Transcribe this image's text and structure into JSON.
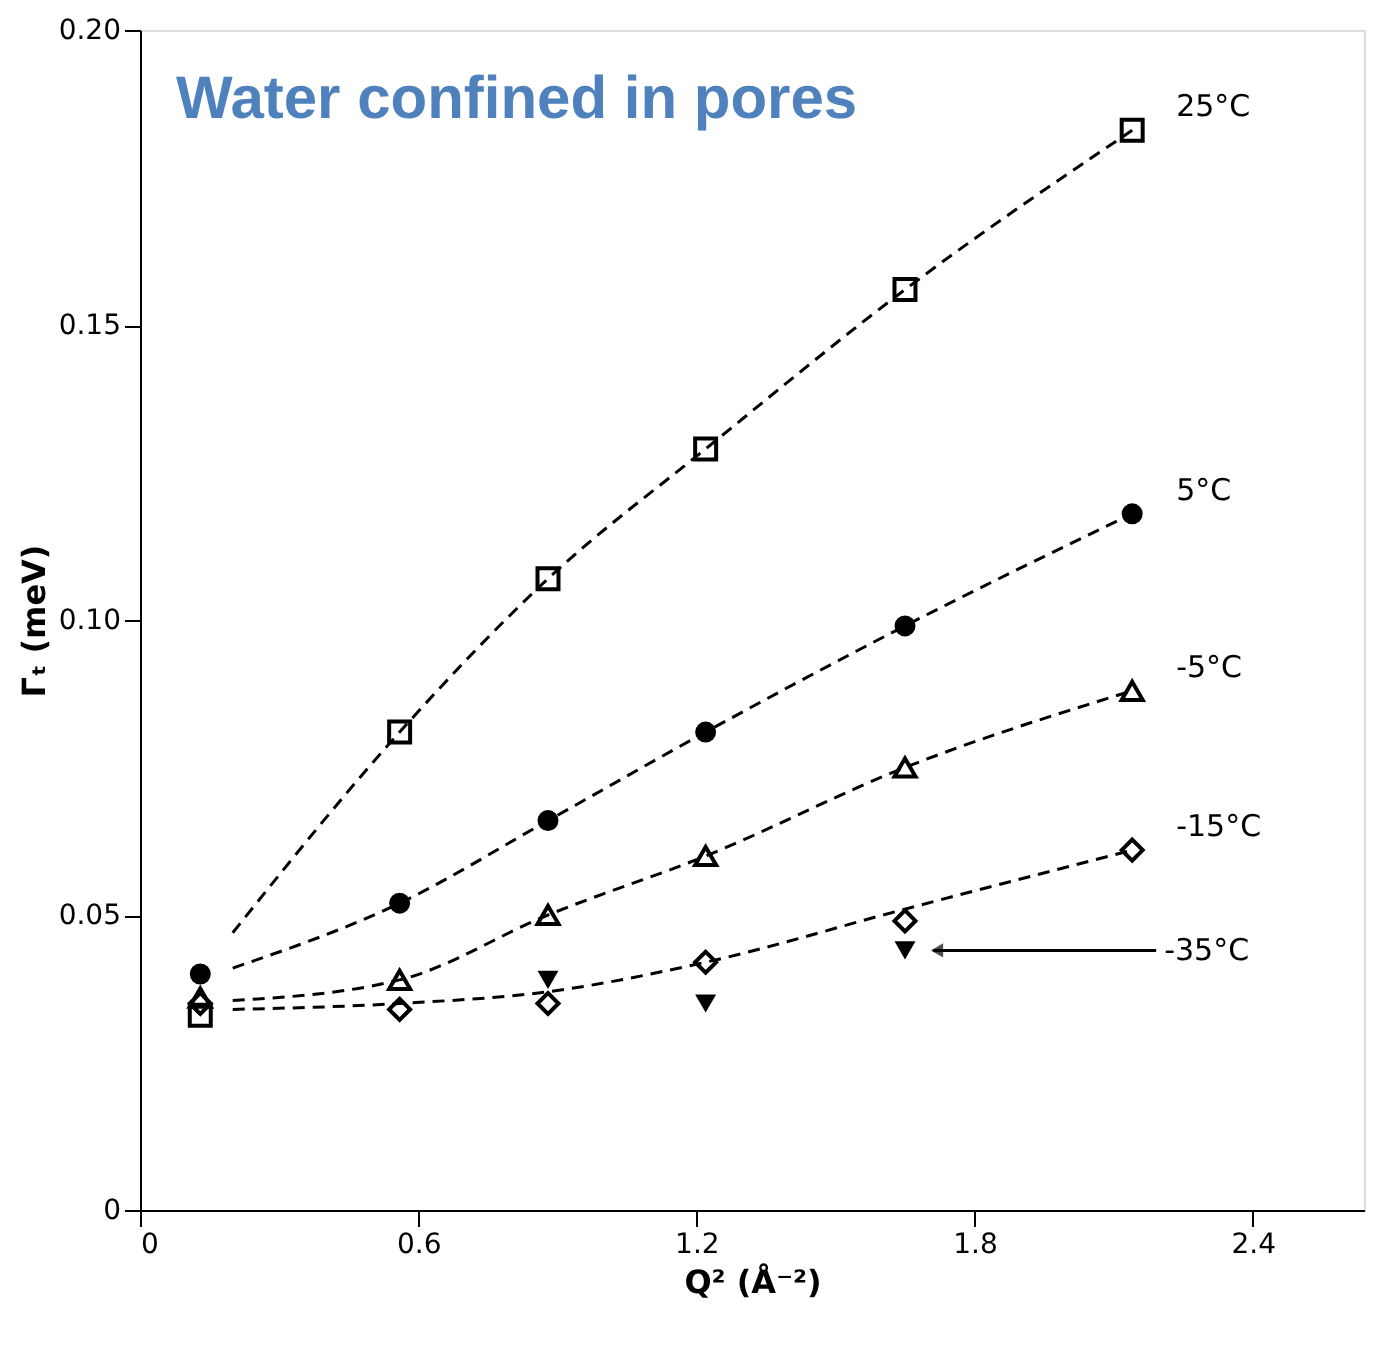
{
  "chart_data": {
    "type": "scatter",
    "xlabel": "Q² (Å⁻²)",
    "ylabel": "Γₜ (meV)",
    "annotations": [
      "Water confined in pores"
    ],
    "xlim": [
      0,
      2.64
    ],
    "xticks": [
      0,
      0.6,
      1.2,
      1.8,
      2.4
    ],
    "ylim": [
      0,
      0.2
    ],
    "yticks": [
      0,
      {
        "value": 0.05,
        "label": "0.05"
      },
      {
        "value": 0.1,
        "label": "0.10"
      },
      {
        "value": 0.15,
        "label": "0.15"
      },
      {
        "value": 0.2,
        "label": "0.20"
      }
    ],
    "grid": false,
    "series": [
      {
        "name": "25°C",
        "color": "#000000",
        "marker": "square",
        "x": [
          0.13,
          0.56,
          0.88,
          1.22,
          1.65,
          2.14
        ],
        "values": [
          0.033,
          0.081,
          0.107,
          0.129,
          0.156,
          0.183
        ]
      },
      {
        "name": "5°C",
        "color": "#000000",
        "marker": "circle",
        "x": [
          0.13,
          0.56,
          0.88,
          1.22,
          1.65,
          2.14
        ],
        "values": [
          0.04,
          0.052,
          0.066,
          0.081,
          0.099,
          0.118
        ]
      },
      {
        "name": "-5°C",
        "color": "#000000",
        "marker": "triangle",
        "x": [
          0.13,
          0.56,
          0.88,
          1.22,
          1.65,
          2.14
        ],
        "values": [
          0.036,
          0.039,
          0.05,
          0.06,
          0.075,
          0.088
        ]
      },
      {
        "name": "-15°C",
        "color": "#000000",
        "marker": "diamond",
        "x": [
          0.13,
          0.56,
          0.88,
          1.22,
          1.65,
          2.14
        ],
        "values": [
          0.035,
          0.034,
          0.035,
          0.042,
          0.049,
          0.061
        ]
      },
      {
        "name": "-35°C",
        "color": "#000000",
        "marker": "triangle-down",
        "x": [
          0.88,
          1.22,
          1.65
        ],
        "values": [
          0.039,
          0.035,
          0.044
        ]
      },
      {
        "type": "line",
        "color": "#000000",
        "line_style": "dashed",
        "x": [
          0.2,
          0.56,
          0.88,
          1.22,
          1.65,
          2.14
        ],
        "values": [
          0.047,
          0.081,
          0.107,
          0.129,
          0.156,
          0.183
        ]
      },
      {
        "type": "line",
        "color": "#000000",
        "line_style": "dashed",
        "x": [
          0.2,
          0.56,
          0.88,
          1.22,
          1.65,
          2.14
        ],
        "values": [
          0.041,
          0.052,
          0.066,
          0.081,
          0.099,
          0.118
        ]
      },
      {
        "type": "line",
        "color": "#000000",
        "line_style": "dashed",
        "x": [
          0.2,
          0.56,
          0.88,
          1.22,
          1.65,
          2.14
        ],
        "values": [
          0.0355,
          0.039,
          0.05,
          0.06,
          0.075,
          0.088
        ]
      },
      {
        "type": "line",
        "color": "#000000",
        "line_style": "dashed",
        "x": [
          0.2,
          0.56,
          0.88,
          1.22,
          1.65,
          2.14
        ],
        "values": [
          0.034,
          0.035,
          0.037,
          0.042,
          0.051,
          0.061
        ]
      }
    ]
  }
}
